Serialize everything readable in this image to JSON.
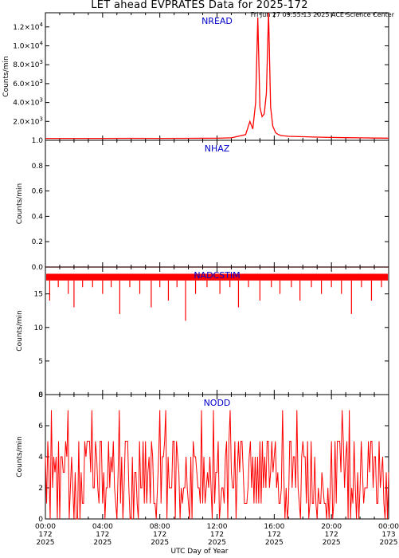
{
  "header": {
    "title": "LET ahead EVPRATES Data for 2025-172",
    "timestamp": "Fri Jun 27 09:55:13 2025 ACE Science Center"
  },
  "xaxis": {
    "label": "UTC Day of Year",
    "range_hours": [
      0,
      24
    ],
    "ticks": [
      {
        "time": "00:00",
        "day": "172",
        "year": "2025"
      },
      {
        "time": "04:00",
        "day": "172",
        "year": "2025"
      },
      {
        "time": "08:00",
        "day": "172",
        "year": "2025"
      },
      {
        "time": "12:00",
        "day": "172",
        "year": "2025"
      },
      {
        "time": "16:00",
        "day": "172",
        "year": "2025"
      },
      {
        "time": "20:00",
        "day": "172",
        "year": "2025"
      },
      {
        "time": "00:00",
        "day": "173",
        "year": "2025"
      }
    ]
  },
  "colors": {
    "series": "#ff0000",
    "panel_title": "#0000cc",
    "axes": "#000000"
  },
  "chart_data": [
    {
      "type": "line",
      "title": "NREAD",
      "ylabel": "Counts/min",
      "ylim": [
        0,
        13500
      ],
      "yticks": [
        {
          "value": 2000,
          "base": "2.0×10",
          "exp": "3"
        },
        {
          "value": 4000,
          "base": "4.0×10",
          "exp": "3"
        },
        {
          "value": 6000,
          "base": "6.0×10",
          "exp": "3"
        },
        {
          "value": 8000,
          "base": "8.0×10",
          "exp": "3"
        },
        {
          "value": 10000,
          "base": "1.0×10",
          "exp": "4"
        },
        {
          "value": 12000,
          "base": "1.2×10",
          "exp": "4"
        }
      ],
      "x": [
        0,
        2,
        4,
        6,
        8,
        10,
        12,
        13,
        14,
        14.3,
        14.5,
        14.7,
        14.85,
        15.0,
        15.15,
        15.3,
        15.45,
        15.6,
        15.75,
        15.9,
        16.1,
        16.3,
        16.5,
        17,
        18,
        19,
        20,
        21,
        22,
        23,
        24
      ],
      "y": [
        200,
        200,
        200,
        210,
        200,
        210,
        220,
        260,
        600,
        2000,
        1200,
        4000,
        13000,
        3500,
        2500,
        2800,
        5000,
        13500,
        3500,
        1500,
        800,
        600,
        500,
        420,
        380,
        340,
        300,
        280,
        260,
        240,
        230
      ]
    },
    {
      "type": "line",
      "title": "NHAZ",
      "ylabel": "Counts/min",
      "ylim": [
        0,
        1
      ],
      "yticks": [
        {
          "value": 0.0,
          "label": "0.0"
        },
        {
          "value": 0.2,
          "label": "0.2"
        },
        {
          "value": 0.4,
          "label": "0.4"
        },
        {
          "value": 0.6,
          "label": "0.6"
        },
        {
          "value": 0.8,
          "label": "0.8"
        },
        {
          "value": 1.0,
          "label": "1.0"
        }
      ],
      "x": [
        0,
        24
      ],
      "y": [
        0,
        0
      ]
    },
    {
      "type": "line",
      "title": "NADCSTIM",
      "ylabel": "Counts/min",
      "ylim": [
        0,
        19
      ],
      "yticks": [
        {
          "value": 0,
          "label": "0"
        },
        {
          "value": 5,
          "label": "5"
        },
        {
          "value": 10,
          "label": "10"
        },
        {
          "value": 15,
          "label": "15"
        }
      ],
      "band": [
        17,
        18
      ],
      "x": [
        0.3,
        0.9,
        1.6,
        2.0,
        2.6,
        3.3,
        4.0,
        4.6,
        5.2,
        5.9,
        6.6,
        7.4,
        8.0,
        8.6,
        9.2,
        9.8,
        10.5,
        11.3,
        12.2,
        12.9,
        13.5,
        14.2,
        15.0,
        15.8,
        16.4,
        17.2,
        17.8,
        18.6,
        19.3,
        20.0,
        20.7,
        21.4,
        22.1,
        22.8,
        23.5
      ],
      "y": [
        14,
        16,
        15,
        13,
        16,
        16,
        15,
        16,
        12,
        16,
        15,
        13,
        16,
        14,
        16,
        11,
        15,
        16,
        15,
        16,
        13,
        16,
        14,
        16,
        15,
        16,
        14,
        16,
        15,
        16,
        15,
        12,
        16,
        14,
        16
      ]
    },
    {
      "type": "line",
      "title": "NODD",
      "ylabel": "Counts/min",
      "ylim": [
        0,
        8
      ],
      "yticks": [
        {
          "value": 0,
          "label": "0"
        },
        {
          "value": 2,
          "label": "2"
        },
        {
          "value": 4,
          "label": "4"
        },
        {
          "value": 6,
          "label": "6"
        },
        {
          "value": 8,
          "label": "8"
        }
      ],
      "sample_minutes": 5,
      "value_range": [
        0,
        7
      ]
    }
  ]
}
